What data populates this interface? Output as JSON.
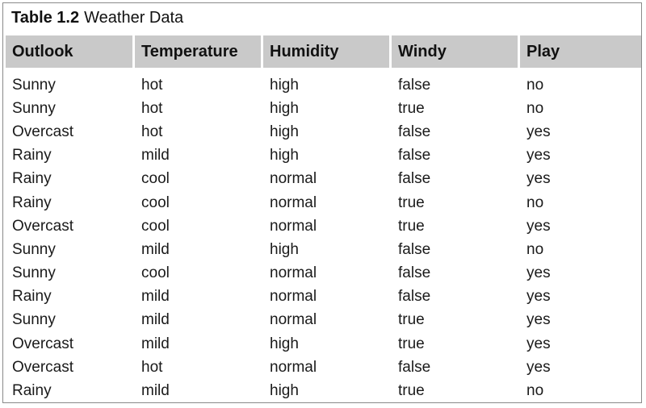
{
  "caption": {
    "number": "Table 1.2",
    "title": "Weather Data"
  },
  "columns": [
    "Outlook",
    "Temperature",
    "Humidity",
    "Windy",
    "Play"
  ],
  "rows": [
    [
      "Sunny",
      "hot",
      "high",
      "false",
      "no"
    ],
    [
      "Sunny",
      "hot",
      "high",
      "true",
      "no"
    ],
    [
      "Overcast",
      "hot",
      "high",
      "false",
      "yes"
    ],
    [
      "Rainy",
      "mild",
      "high",
      "false",
      "yes"
    ],
    [
      "Rainy",
      "cool",
      "normal",
      "false",
      "yes"
    ],
    [
      "Rainy",
      "cool",
      "normal",
      "true",
      "no"
    ],
    [
      "Overcast",
      "cool",
      "normal",
      "true",
      "yes"
    ],
    [
      "Sunny",
      "mild",
      "high",
      "false",
      "no"
    ],
    [
      "Sunny",
      "cool",
      "normal",
      "false",
      "yes"
    ],
    [
      "Rainy",
      "mild",
      "normal",
      "false",
      "yes"
    ],
    [
      "Sunny",
      "mild",
      "normal",
      "true",
      "yes"
    ],
    [
      "Overcast",
      "mild",
      "high",
      "true",
      "yes"
    ],
    [
      "Overcast",
      "hot",
      "normal",
      "false",
      "yes"
    ],
    [
      "Rainy",
      "mild",
      "high",
      "true",
      "no"
    ]
  ]
}
